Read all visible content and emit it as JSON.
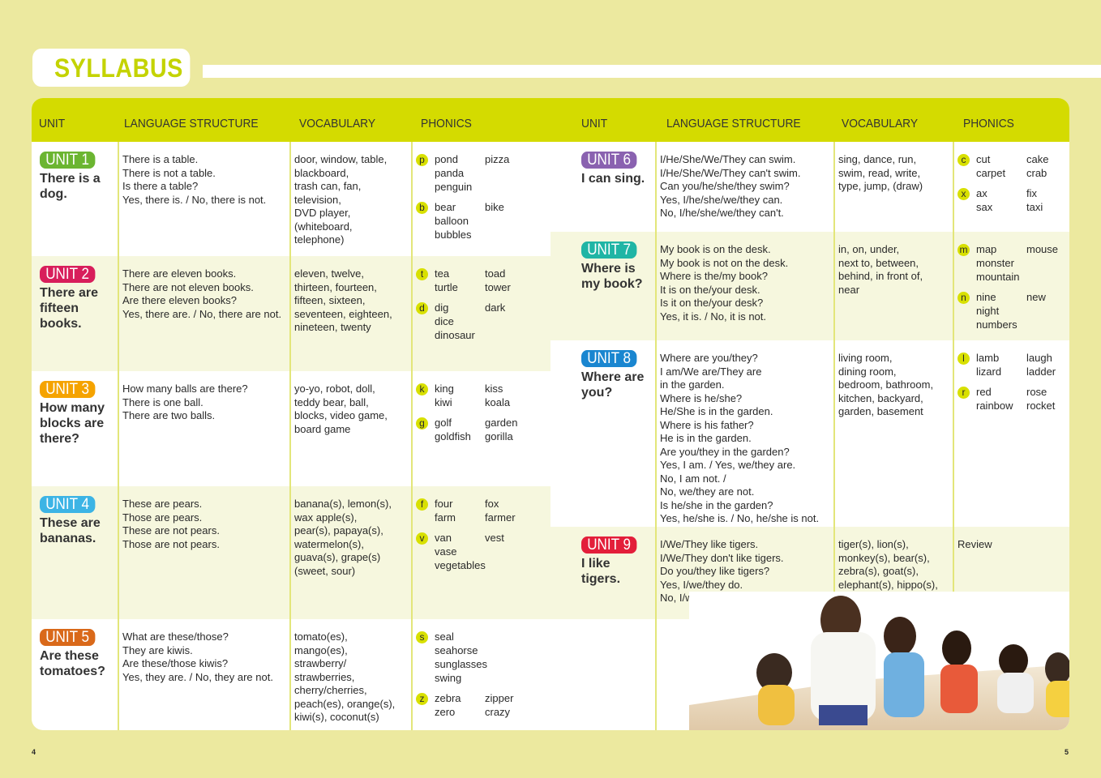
{
  "title": "SYLLABUS",
  "headers": [
    "UNIT",
    "LANGUAGE STRUCTURE",
    "VOCABULARY",
    "PHONICS"
  ],
  "page_numbers": [
    "4",
    "5"
  ],
  "colors": {
    "header": "#d4db00",
    "background": "#ece99f",
    "phonics_dot": "#d8e000"
  },
  "left_units": [
    {
      "badge": "UNIT 1",
      "color": "#6bb531",
      "title": "There is a\ndog.",
      "structure": "There is a table.\nThere is not a table.\nIs there a table?\nYes, there is. / No, there is not.",
      "vocabulary": "door, window, table,\nblackboard,\ntrash can, fan,\ntelevision,\nDVD player,\n(whiteboard,\ntelephone)",
      "phonics": [
        {
          "letter": "p",
          "a": [
            "pond",
            "panda",
            "penguin"
          ],
          "b": [
            "pizza"
          ]
        },
        {
          "letter": "b",
          "a": [
            "bear",
            "balloon",
            "bubbles"
          ],
          "b": [
            "bike"
          ]
        }
      ]
    },
    {
      "badge": "UNIT 2",
      "color": "#d81e5b",
      "title": "There are\nfifteen\nbooks.",
      "structure": "There are eleven books.\nThere are not eleven books.\nAre there eleven books?\nYes, there are. / No, there are not.",
      "vocabulary": "eleven, twelve,\nthirteen, fourteen,\nfifteen, sixteen,\nseventeen, eighteen,\nnineteen, twenty",
      "phonics": [
        {
          "letter": "t",
          "a": [
            "tea",
            "turtle"
          ],
          "b": [
            "toad",
            "tower"
          ]
        },
        {
          "letter": "d",
          "a": [
            "dig",
            "dice",
            "dinosaur"
          ],
          "b": [
            "dark"
          ]
        }
      ]
    },
    {
      "badge": "UNIT 3",
      "color": "#f5a300",
      "title": "How many\nblocks are\nthere?",
      "structure": "How many balls are there?\nThere is one ball.\nThere are two balls.",
      "vocabulary": "yo-yo, robot, doll,\nteddy bear, ball,\nblocks, video game,\nboard game",
      "phonics": [
        {
          "letter": "k",
          "a": [
            "king",
            "kiwi"
          ],
          "b": [
            "kiss",
            "koala"
          ]
        },
        {
          "letter": "g",
          "a": [
            "golf",
            "goldfish"
          ],
          "b": [
            "garden",
            "gorilla"
          ]
        }
      ]
    },
    {
      "badge": "UNIT 4",
      "color": "#3cb4e5",
      "title": "These are\nbananas.",
      "structure": "These are pears.\nThose are pears.\nThese are not pears.\nThose are not pears.",
      "vocabulary": "banana(s), lemon(s),\nwax apple(s),\npear(s), papaya(s),\nwatermelon(s),\nguava(s), grape(s)\n(sweet, sour)",
      "phonics": [
        {
          "letter": "f",
          "a": [
            "four",
            "farm"
          ],
          "b": [
            "fox",
            "farmer"
          ]
        },
        {
          "letter": "v",
          "a": [
            "van",
            "vase",
            "vegetables"
          ],
          "b": [
            "vest"
          ]
        }
      ]
    },
    {
      "badge": "UNIT 5",
      "color": "#d9691a",
      "title": "Are these\ntomatoes?",
      "structure": "What are these/those?\nThey are kiwis.\nAre these/those kiwis?\nYes, they are. / No, they are not.",
      "vocabulary": "tomato(es),\nmango(es),\nstrawberry/\nstrawberries,\ncherry/cherries,\npeach(es), orange(s),\nkiwi(s), coconut(s)",
      "phonics": [
        {
          "letter": "s",
          "a": [
            "seal",
            "seahorse",
            "sunglasses",
            "swing"
          ],
          "b": []
        },
        {
          "letter": "z",
          "a": [
            "zebra",
            "zero"
          ],
          "b": [
            "zipper",
            "crazy"
          ]
        }
      ]
    }
  ],
  "right_units": [
    {
      "badge": "UNIT 6",
      "color": "#8a62b0",
      "title": "I can sing.",
      "structure": "I/He/She/We/They can swim.\nI/He/She/We/They can't swim.\nCan you/he/she/they swim?\nYes, I/he/she/we/they can.\nNo, I/he/she/we/they can't.",
      "vocabulary": "sing, dance, run,\nswim, read, write,\ntype, jump, (draw)",
      "phonics": [
        {
          "letter": "c",
          "a": [
            "cut",
            "carpet"
          ],
          "b": [
            "cake",
            "crab"
          ]
        },
        {
          "letter": "x",
          "a": [
            "ax",
            "sax"
          ],
          "b": [
            "fix",
            "taxi"
          ]
        }
      ]
    },
    {
      "badge": "UNIT 7",
      "color": "#20b5a5",
      "title": "Where is\nmy book?",
      "structure": "My book is on the desk.\nMy book is not on the desk.\nWhere is the/my book?\nIt is on the/your desk.\nIs it on the/your desk?\nYes, it is. / No, it is not.",
      "vocabulary": "in, on, under,\nnext to, between,\nbehind, in front of,\nnear",
      "phonics": [
        {
          "letter": "m",
          "a": [
            "map",
            "monster",
            "mountain"
          ],
          "b": [
            "mouse"
          ]
        },
        {
          "letter": "n",
          "a": [
            "nine",
            "night",
            "numbers"
          ],
          "b": [
            "new"
          ]
        }
      ]
    },
    {
      "badge": "UNIT 8",
      "color": "#1a86d0",
      "title": "Where are\nyou?",
      "structure": "Where are you/they?\nI am/We are/They are\nin the garden.\nWhere is he/she?\nHe/She is in the garden.\nWhere is his father?\nHe is in the garden.\nAre you/they in the garden?\nYes, I am. / Yes, we/they are.\nNo, I am not. /\nNo, we/they are not.\nIs he/she in the garden?\nYes, he/she is. / No, he/she is not.",
      "vocabulary": "living room,\ndining room,\nbedroom, bathroom,\nkitchen, backyard,\ngarden, basement",
      "phonics": [
        {
          "letter": "l",
          "a": [
            "lamb",
            "lizard"
          ],
          "b": [
            "laugh",
            "ladder"
          ]
        },
        {
          "letter": "r",
          "a": [
            "red",
            "rainbow"
          ],
          "b": [
            "rose",
            "rocket"
          ]
        }
      ]
    },
    {
      "badge": "UNIT 9",
      "color": "#e31e3a",
      "title": "I like\ntigers.",
      "structure": "I/We/They like tigers.\nI/We/They don't like tigers.\nDo you/they like tigers?\nYes, I/we/they do.\nNo, I/we/they don't.",
      "vocabulary": "tiger(s), lion(s),\nmonkey(s), bear(s),\nzebra(s), goat(s),\nelephant(s), hippo(s),\nsnake(s), parrot(s)",
      "phonics_text": "Review"
    }
  ]
}
